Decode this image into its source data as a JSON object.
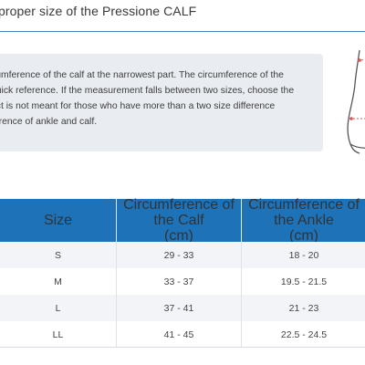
{
  "title": "t proper size of the Pressione CALF",
  "info": {
    "lines": [
      "cumference of the calf at the narrowest part. The circumference of the",
      "quick reference. If the measurement falls between two sizes, choose the",
      "uct is not meant for those who have more than a two size difference",
      "ference of ankle and calf."
    ]
  },
  "figure": {
    "icon": "leg-diagram-icon",
    "accent_color": "#d9534f"
  },
  "table": {
    "header_color": "#1d72b8",
    "headers": [
      {
        "line1": "Size",
        "line2": ""
      },
      {
        "line1": "Circumference of the Calf",
        "line2": "(cm)"
      },
      {
        "line1": "Circumference of the Ankle",
        "line2": "(cm)"
      }
    ],
    "rows": [
      {
        "size": "S",
        "calf": "29 - 33",
        "ankle": "18 - 20"
      },
      {
        "size": "M",
        "calf": "33 - 37",
        "ankle": "19.5 - 21.5"
      },
      {
        "size": "L",
        "calf": "37 - 41",
        "ankle": "21 - 23"
      },
      {
        "size": "LL",
        "calf": "41 - 45",
        "ankle": "22.5 - 24.5"
      }
    ]
  }
}
